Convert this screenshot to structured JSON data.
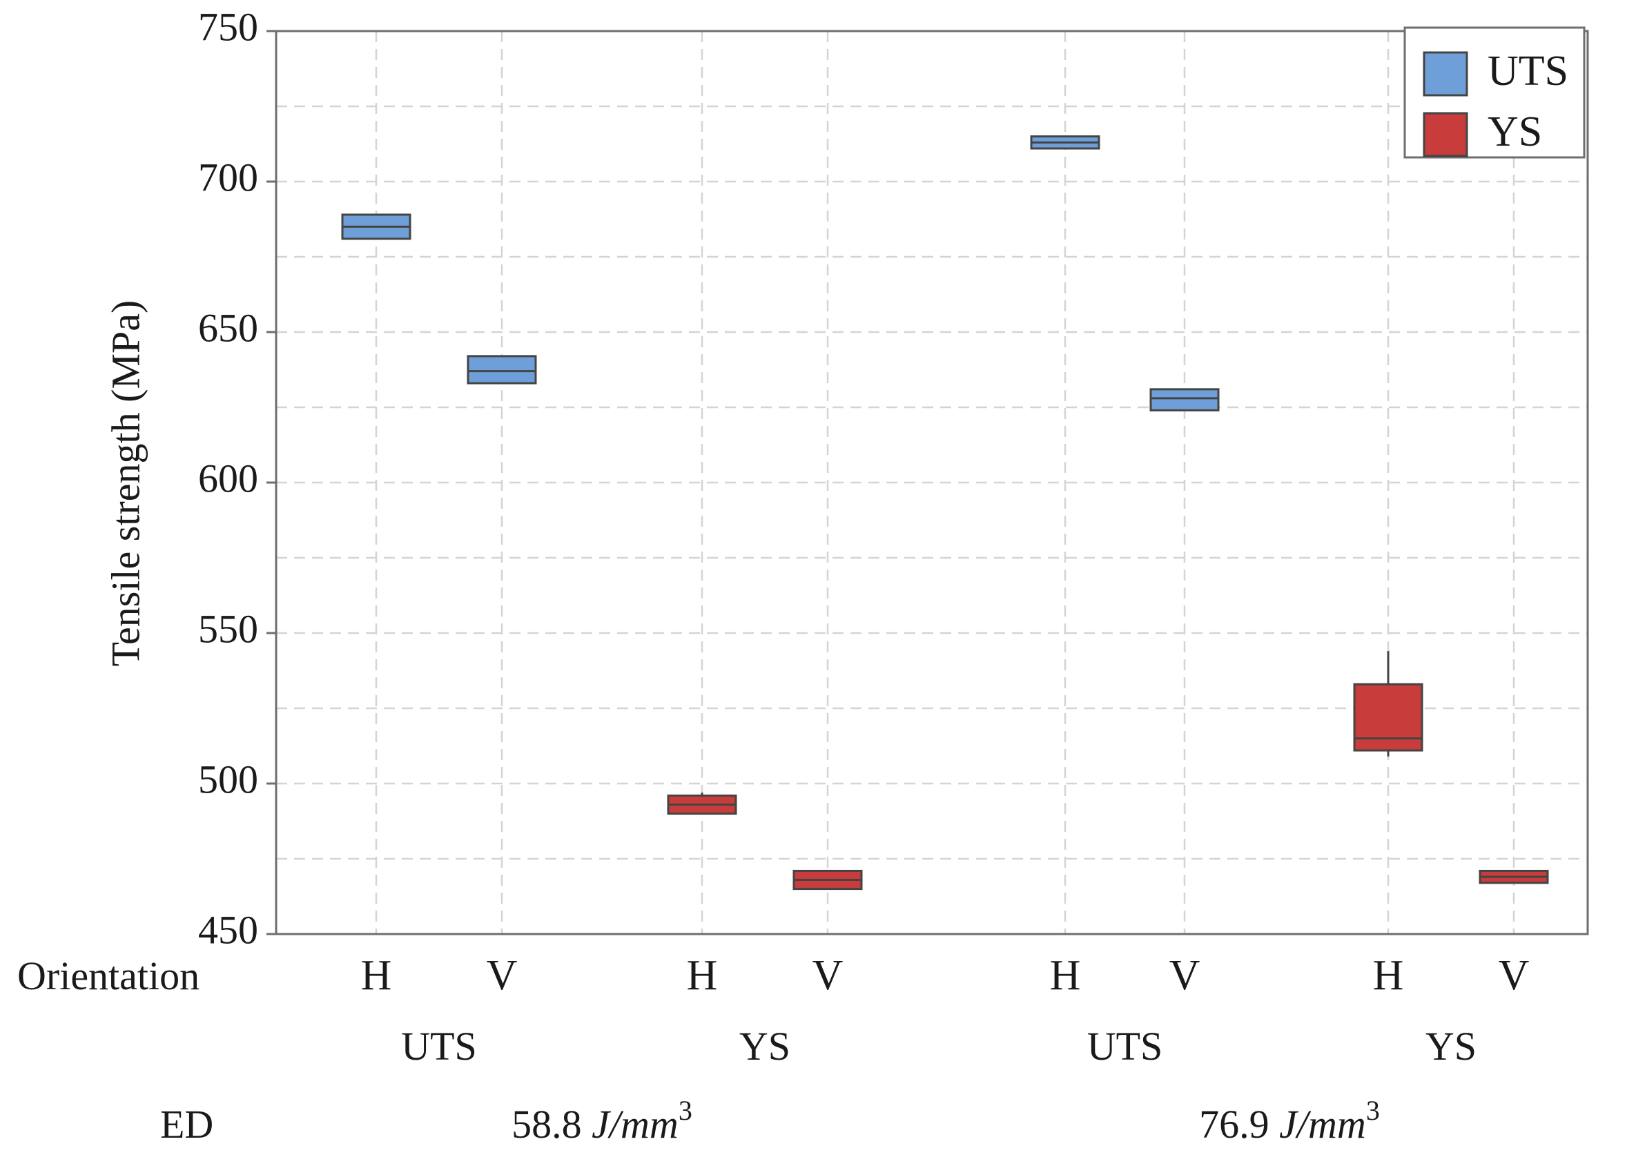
{
  "chart_data": {
    "type": "box",
    "ylabel": "Tensile strength (MPa)",
    "ylim": [
      450,
      750
    ],
    "yticks": [
      450,
      500,
      550,
      600,
      650,
      700,
      750
    ],
    "grid": true,
    "grid_style": "dashed",
    "legend": {
      "placement": "top-right",
      "entries": [
        {
          "name": "UTS",
          "color": "#6f9fd8"
        },
        {
          "name": "YS",
          "color": "#c83c3c"
        }
      ]
    },
    "row_labels": {
      "orientation": "Orientation",
      "ed": "ED"
    },
    "ed_groups": [
      {
        "value": "58.8",
        "unit": "J/mm",
        "exp": "3"
      },
      {
        "value": "76.9",
        "unit": "J/mm",
        "exp": "3"
      }
    ],
    "property_groups": [
      "UTS",
      "YS",
      "UTS",
      "YS"
    ],
    "boxes": [
      {
        "orientation": "H",
        "property": "UTS",
        "ed_index": 0,
        "q1": 681,
        "median": 685,
        "q3": 689,
        "min": 681,
        "max": 689,
        "color": "#6f9fd8"
      },
      {
        "orientation": "V",
        "property": "UTS",
        "ed_index": 0,
        "q1": 633,
        "median": 637,
        "q3": 642,
        "min": 633,
        "max": 642,
        "color": "#6f9fd8"
      },
      {
        "orientation": "H",
        "property": "YS",
        "ed_index": 0,
        "q1": 490,
        "median": 493,
        "q3": 496,
        "min": 490,
        "max": 497,
        "color": "#c83c3c"
      },
      {
        "orientation": "V",
        "property": "YS",
        "ed_index": 0,
        "q1": 465,
        "median": 468,
        "q3": 471,
        "min": 465,
        "max": 471,
        "color": "#c83c3c"
      },
      {
        "orientation": "H",
        "property": "UTS",
        "ed_index": 1,
        "q1": 711,
        "median": 713,
        "q3": 715,
        "min": 711,
        "max": 715,
        "color": "#6f9fd8"
      },
      {
        "orientation": "V",
        "property": "UTS",
        "ed_index": 1,
        "q1": 624,
        "median": 628,
        "q3": 631,
        "min": 624,
        "max": 631,
        "color": "#6f9fd8"
      },
      {
        "orientation": "H",
        "property": "YS",
        "ed_index": 1,
        "q1": 511,
        "median": 515,
        "q3": 533,
        "min": 509,
        "max": 544,
        "color": "#c83c3c"
      },
      {
        "orientation": "V",
        "property": "YS",
        "ed_index": 1,
        "q1": 467,
        "median": 469,
        "q3": 471,
        "min": 467,
        "max": 471,
        "color": "#c83c3c"
      }
    ]
  }
}
